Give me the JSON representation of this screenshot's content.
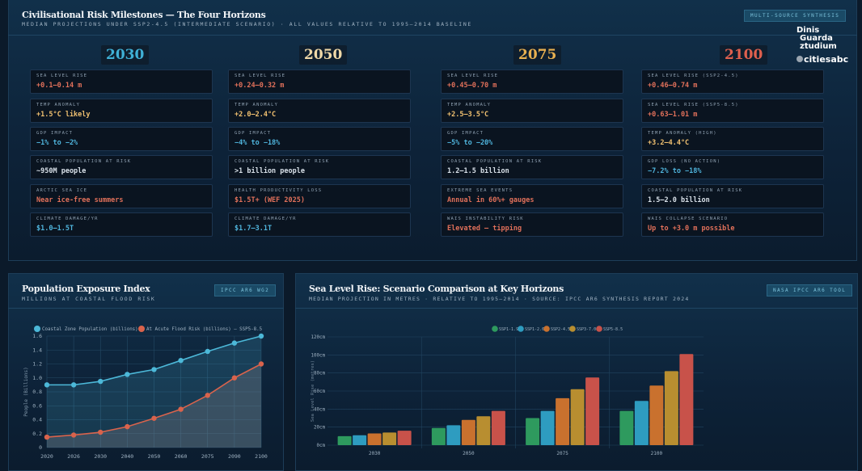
{
  "top": {
    "title": "Civilisational Risk Milestones — The Four Horizons",
    "subtitle": "MEDIAN PROJECTIONS UNDER SSP2-4.5 (INTERMEDIATE SCENARIO) · ALL VALUES RELATIVE TO 1995–2014 BASELINE",
    "badge": "MULTI-SOURCE SYNTHESIS",
    "logo": {
      "line1": "Dinis",
      "line2": "Guarda",
      "line3": "ztudium",
      "line4": "citiesabc"
    },
    "columns": [
      {
        "year": "2030",
        "color": "#3fb0d6",
        "cards": [
          {
            "label": "SEA LEVEL RISE",
            "value": "+0.1–0.14 m",
            "color": "#e0705a"
          },
          {
            "label": "TEMP ANOMALY",
            "value": "+1.5°C likely",
            "color": "#f0c070"
          },
          {
            "label": "GDP IMPACT",
            "value": "−1% to −2%",
            "color": "#4fb4dc"
          },
          {
            "label": "COASTAL POPULATION AT RISK",
            "value": "~950M people",
            "color": "#d8e0e8"
          },
          {
            "label": "ARCTIC SEA ICE",
            "value": "Near ice-free summers",
            "color": "#e0705a"
          },
          {
            "label": "CLIMATE DAMAGE/YR",
            "value": "$1.0–1.5T",
            "color": "#4fb4dc"
          }
        ]
      },
      {
        "year": "2050",
        "color": "#f0d9a8",
        "cards": [
          {
            "label": "SEA LEVEL RISE",
            "value": "+0.24–0.32 m",
            "color": "#e0705a"
          },
          {
            "label": "TEMP ANOMALY",
            "value": "+2.0–2.4°C",
            "color": "#f0c070"
          },
          {
            "label": "GDP IMPACT",
            "value": "−4% to −18%",
            "color": "#4fb4dc"
          },
          {
            "label": "COASTAL POPULATION AT RISK",
            "value": ">1 billion people",
            "color": "#d8e0e8"
          },
          {
            "label": "HEALTH PRODUCTIVITY LOSS",
            "value": "$1.5T+ (WEF 2025)",
            "color": "#e0705a"
          },
          {
            "label": "CLIMATE DAMAGE/YR",
            "value": "$1.7–3.1T",
            "color": "#4fb4dc"
          }
        ]
      },
      {
        "year": "2075",
        "color": "#e8b050",
        "cards": [
          {
            "label": "SEA LEVEL RISE",
            "value": "+0.45–0.70 m",
            "color": "#e0705a"
          },
          {
            "label": "TEMP ANOMALY",
            "value": "+2.5–3.5°C",
            "color": "#f0c070"
          },
          {
            "label": "GDP IMPACT",
            "value": "−5% to −20%",
            "color": "#4fb4dc"
          },
          {
            "label": "COASTAL POPULATION AT RISK",
            "value": "1.2–1.5 billion",
            "color": "#d8e0e8"
          },
          {
            "label": "EXTREME SEA EVENTS",
            "value": "Annual in 60%+ gauges",
            "color": "#e0705a"
          },
          {
            "label": "WAIS INSTABILITY RISK",
            "value": "Elevated — tipping",
            "color": "#e0705a"
          }
        ]
      },
      {
        "year": "2100",
        "color": "#e0604e",
        "cards": [
          {
            "label": "SEA LEVEL RISE (SSP2-4.5)",
            "value": "+0.46–0.74 m",
            "color": "#e0705a"
          },
          {
            "label": "SEA LEVEL RISE (SSP5-8.5)",
            "value": "+0.63–1.01 m",
            "color": "#e0705a"
          },
          {
            "label": "TEMP ANOMALY (HIGH)",
            "value": "+3.2–4.4°C",
            "color": "#f0c070"
          },
          {
            "label": "GDP LOSS (NO ACTION)",
            "value": "−7.2% to −18%",
            "color": "#4fb4dc"
          },
          {
            "label": "COASTAL POPULATION AT RISK",
            "value": "1.5–2.0 billion",
            "color": "#d8e0e8"
          },
          {
            "label": "WAIS COLLAPSE SCENARIO",
            "value": "Up to +3.0 m possible",
            "color": "#e0705a"
          }
        ]
      }
    ]
  },
  "population": {
    "title": "Population Exposure Index",
    "subtitle": "MILLIONS AT COASTAL FLOOD RISK",
    "badge": "IPCC AR6 WG2"
  },
  "sealevel": {
    "title": "Sea Level Rise: Scenario Comparison at Key Horizons",
    "subtitle": "MEDIAN PROJECTION IN METRES · RELATIVE TO 1995–2014 · SOURCE: IPCC AR6 SYNTHESIS REPORT 2024",
    "badge": "NASA IPCC AR6 TOOL"
  },
  "chart_data": [
    {
      "type": "line",
      "title": "Population Exposure Index",
      "xlabel": "",
      "ylabel": "People (Billions)",
      "ylim": [
        0,
        1.6
      ],
      "yticks": [
        "0",
        "0.2",
        "0.4",
        "0.6",
        "0.8",
        "1.0",
        "1.2",
        "1.4",
        "1.6"
      ],
      "x": [
        "2020",
        "2026",
        "2030",
        "2040",
        "2050",
        "2060",
        "2075",
        "2090",
        "2100"
      ],
      "legend": "top",
      "series": [
        {
          "name": "Coastal Zone Population (billions)",
          "color": "#4cb8d8",
          "values": [
            0.9,
            0.9,
            0.95,
            1.05,
            1.12,
            1.25,
            1.38,
            1.5,
            1.6
          ]
        },
        {
          "name": "At Acute Flood Risk (billions) — SSP5-8.5",
          "color": "#d9634c",
          "values": [
            0.15,
            0.18,
            0.22,
            0.3,
            0.42,
            0.55,
            0.75,
            1.0,
            1.2
          ]
        }
      ]
    },
    {
      "type": "bar",
      "title": "Sea Level Rise: Scenario Comparison at Key Horizons",
      "ylabel": "Sea Level Rise (metres)",
      "ylim": [
        0,
        120
      ],
      "yticks": [
        "0cm",
        "20cm",
        "40cm",
        "60cm",
        "80cm",
        "100cm",
        "120cm"
      ],
      "categories": [
        "2030",
        "2050",
        "2075",
        "2100"
      ],
      "legend": "top",
      "series": [
        {
          "name": "SSP1-1.9",
          "color": "#2e9a5e",
          "values": [
            10,
            19,
            30,
            38
          ]
        },
        {
          "name": "SSP1-2.6",
          "color": "#2e9cc0",
          "values": [
            11,
            22,
            38,
            49
          ]
        },
        {
          "name": "SSP2-4.5",
          "color": "#c9712e",
          "values": [
            13,
            28,
            52,
            66
          ]
        },
        {
          "name": "SSP3-7.0",
          "color": "#b88e30",
          "values": [
            14,
            32,
            62,
            82
          ]
        },
        {
          "name": "SSP5-8.5",
          "color": "#c8524a",
          "values": [
            16,
            38,
            75,
            101
          ]
        }
      ]
    }
  ]
}
